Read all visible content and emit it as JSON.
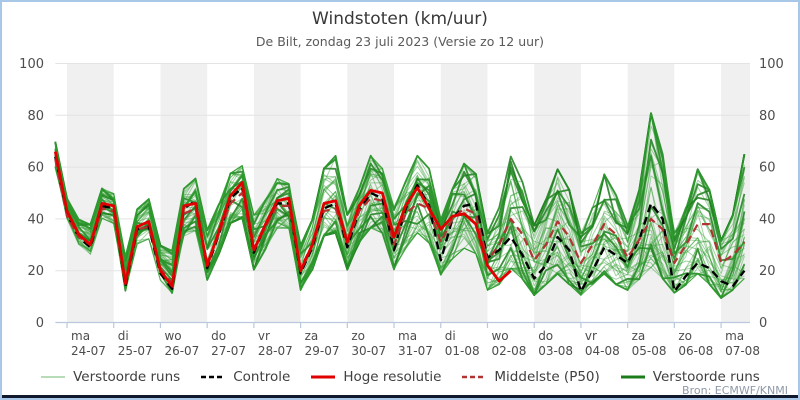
{
  "header": {
    "title": "Windstoten (km/uur)",
    "subtitle": "De Bilt, zondag 23 juli 2023 (Versie zo 12 uur)"
  },
  "source": "Bron: ECMWF/KNMI",
  "chart_data": {
    "type": "line",
    "title": "Windstoten (km/uur)",
    "subtitle": "De Bilt, zondag 23 juli 2023 (Versie zo 12 uur)",
    "xlabel": "",
    "ylabel": "km/uur",
    "ylim": [
      0,
      100
    ],
    "yticks": [
      0,
      20,
      40,
      60,
      80,
      100
    ],
    "grid": true,
    "legend_position": "bottom",
    "x_start": "23-07 18:00",
    "step_hours": 6,
    "points_per_day": 4,
    "days": [
      {
        "weekday": "ma",
        "date": "24-07",
        "shaded": true
      },
      {
        "weekday": "di",
        "date": "25-07",
        "shaded": false
      },
      {
        "weekday": "wo",
        "date": "26-07",
        "shaded": true
      },
      {
        "weekday": "do",
        "date": "27-07",
        "shaded": false
      },
      {
        "weekday": "vr",
        "date": "28-07",
        "shaded": true
      },
      {
        "weekday": "za",
        "date": "29-07",
        "shaded": false
      },
      {
        "weekday": "zo",
        "date": "30-07",
        "shaded": true
      },
      {
        "weekday": "ma",
        "date": "31-07",
        "shaded": false
      },
      {
        "weekday": "di",
        "date": "01-08",
        "shaded": true
      },
      {
        "weekday": "wo",
        "date": "02-08",
        "shaded": false
      },
      {
        "weekday": "do",
        "date": "03-08",
        "shaded": true
      },
      {
        "weekday": "vr",
        "date": "04-08",
        "shaded": false
      },
      {
        "weekday": "za",
        "date": "05-08",
        "shaded": true
      },
      {
        "weekday": "zo",
        "date": "06-08",
        "shaded": false
      },
      {
        "weekday": "ma",
        "date": "07-08",
        "shaded": true
      }
    ],
    "series": [
      {
        "name": "Controle",
        "color": "#000000",
        "style": "dashed",
        "width": 2.4,
        "values": [
          64,
          42,
          33,
          29,
          45,
          44,
          14,
          36,
          37,
          19,
          13,
          44,
          47,
          21,
          34,
          48,
          52,
          27,
          38,
          46,
          46,
          19,
          29,
          44,
          46,
          29,
          43,
          50,
          48,
          28,
          44,
          53,
          45,
          24,
          40,
          45,
          46,
          25,
          28,
          33,
          26,
          17,
          22,
          33,
          28,
          12,
          20,
          29,
          26,
          23,
          32,
          46,
          40,
          12,
          18,
          23,
          21,
          16,
          14,
          20
        ]
      },
      {
        "name": "Middelste (P50)",
        "color": "#b23333",
        "style": "dashed",
        "width": 2.2,
        "values": [
          63,
          41,
          33,
          30,
          44,
          43,
          16,
          36,
          37,
          21,
          15,
          42,
          44,
          23,
          34,
          46,
          50,
          28,
          37,
          45,
          45,
          21,
          30,
          43,
          44,
          31,
          43,
          48,
          47,
          30,
          42,
          46,
          44,
          31,
          40,
          44,
          42,
          24,
          30,
          40,
          34,
          24,
          30,
          39,
          33,
          23,
          30,
          38,
          34,
          25,
          32,
          40,
          36,
          23,
          30,
          38,
          38,
          23,
          26,
          31
        ]
      },
      {
        "name": "Hoge resolutie",
        "color": "#e00000",
        "style": "solid",
        "width": 2.8,
        "values": [
          66,
          43,
          34,
          30,
          46,
          45,
          15,
          37,
          39,
          20,
          14,
          45,
          46,
          22,
          35,
          49,
          54,
          28,
          38,
          47,
          48,
          20,
          30,
          46,
          47,
          31,
          45,
          51,
          50,
          33,
          45,
          52,
          44,
          36,
          41,
          42,
          38,
          22,
          16,
          20
        ]
      }
    ],
    "ensemble": {
      "name": "Verstoorde runs",
      "count": 50,
      "thick_count": 8,
      "color_thin": "#2f9e2f",
      "color_thick": "#1b7c1b",
      "thin_opacity": 0.45,
      "thick_opacity": 0.85,
      "seed": 7,
      "envelope_min": [
        60,
        40,
        30,
        26,
        40,
        38,
        12,
        30,
        32,
        16,
        11,
        33,
        35,
        16,
        26,
        38,
        40,
        20,
        28,
        36,
        36,
        12,
        20,
        33,
        34,
        20,
        30,
        36,
        34,
        20,
        28,
        34,
        30,
        18,
        24,
        28,
        26,
        12,
        14,
        20,
        16,
        10,
        14,
        18,
        14,
        10,
        14,
        18,
        14,
        12,
        16,
        20,
        16,
        11,
        14,
        18,
        14,
        9,
        12,
        16
      ],
      "envelope_max": [
        70,
        48,
        40,
        38,
        52,
        50,
        26,
        44,
        48,
        30,
        28,
        52,
        56,
        36,
        46,
        58,
        61,
        42,
        48,
        56,
        54,
        30,
        40,
        60,
        65,
        42,
        52,
        65,
        60,
        45,
        55,
        65,
        60,
        40,
        52,
        62,
        58,
        35,
        45,
        65,
        55,
        38,
        48,
        60,
        52,
        35,
        45,
        58,
        50,
        38,
        52,
        82,
        66,
        35,
        45,
        60,
        52,
        32,
        42,
        66
      ]
    },
    "legend": [
      {
        "label": "Verstoorde runs",
        "color": "#b7dcb7",
        "dash": "",
        "width": 2
      },
      {
        "label": "Controle",
        "color": "#000000",
        "dash": "5,3",
        "width": 2.5
      },
      {
        "label": "Hoge resolutie",
        "color": "#e00000",
        "dash": "",
        "width": 3
      },
      {
        "label": "Middelste (P50)",
        "color": "#b23333",
        "dash": "5,3",
        "width": 2.5
      },
      {
        "label": "Verstoorde runs",
        "color": "#1b7c1b",
        "dash": "",
        "width": 3
      }
    ],
    "colors": {
      "band": "#f0f0f0",
      "gridline": "#e3e3e3",
      "axis": "#b9c8dd",
      "tick_label": "#4d4d4d"
    }
  }
}
